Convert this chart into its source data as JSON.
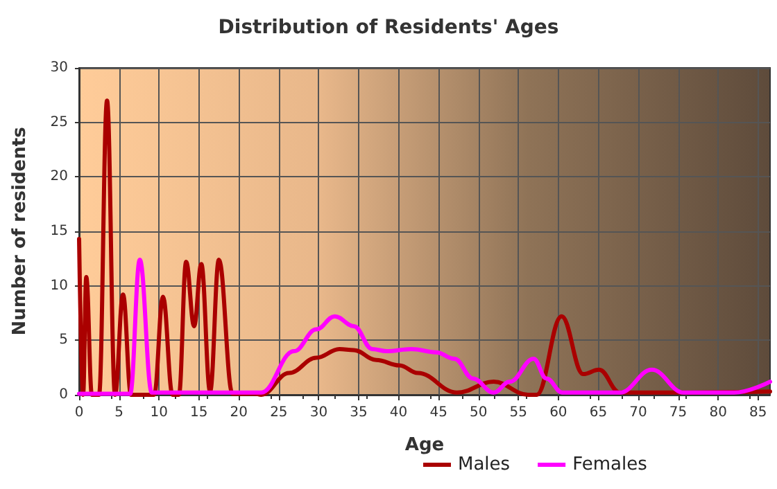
{
  "chart_data": {
    "type": "line",
    "title": "Distribution of Residents' Ages",
    "xlabel": "Age",
    "ylabel": "Number of residents",
    "xlim": [
      0,
      86.5
    ],
    "xticks": [
      0,
      5,
      10,
      15,
      20,
      25,
      30,
      35,
      40,
      45,
      50,
      55,
      60,
      65,
      70,
      75,
      80,
      85
    ],
    "ylim": [
      0,
      30
    ],
    "yticks": [
      0,
      5,
      10,
      15,
      20,
      25,
      30
    ],
    "grid": true,
    "legend": "bottom",
    "marker": "none",
    "line_style": "solid",
    "series": [
      {
        "name": "Males",
        "color": "#aa0000",
        "x": [
          0,
          0.5,
          0.9,
          1.6,
          2.5,
          3.5,
          4.5,
          5.5,
          6.5,
          9.4,
          10.5,
          11.7,
          12.5,
          13.4,
          14.4,
          15.3,
          16.4,
          17.5,
          19.2,
          22,
          22.8,
          26.3,
          29.7,
          32.6,
          34.4,
          37.2,
          40.1,
          42.4,
          47.3,
          51.9,
          56.2,
          57.3,
          60.4,
          63.1,
          65.1,
          67.7,
          73.4,
          86.5
        ],
        "values": [
          14.3,
          0,
          10.8,
          0,
          0,
          27,
          0,
          9.2,
          0,
          0,
          9,
          0,
          0,
          12.2,
          6.3,
          12,
          0.3,
          12.4,
          0.1,
          0.1,
          0,
          2,
          3.4,
          4.2,
          4.1,
          3.2,
          2.7,
          2,
          0.2,
          1.2,
          0,
          0,
          7.2,
          1.9,
          2.3,
          0.2,
          0.2,
          0.3
        ]
      },
      {
        "name": "Females",
        "color": "#ff00ff",
        "x": [
          0,
          6.4,
          7.6,
          9.1,
          22.8,
          26.9,
          29.7,
          32,
          34.4,
          36.7,
          38.5,
          41.6,
          44.7,
          47,
          49.3,
          51.9,
          53.9,
          56.9,
          58.5,
          60.5,
          64.8,
          67.7,
          71.7,
          75.7,
          82,
          86.5
        ],
        "values": [
          0.1,
          0.1,
          12.4,
          0.2,
          0.2,
          4,
          6,
          7.2,
          6.3,
          4.2,
          4,
          4.2,
          3.9,
          3.3,
          1.5,
          0.2,
          1.2,
          3.3,
          1.5,
          0.2,
          0.2,
          0.2,
          2.3,
          0.2,
          0.2,
          1.2
        ]
      }
    ]
  }
}
